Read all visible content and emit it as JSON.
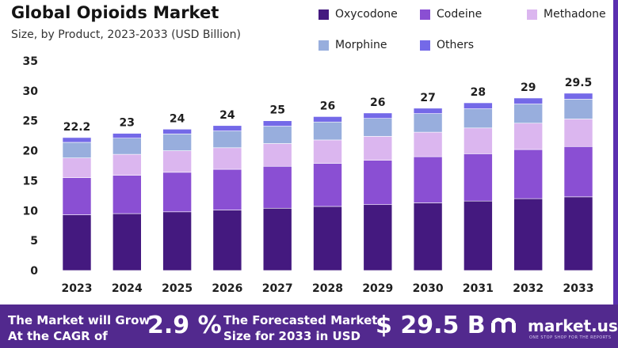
{
  "header": {
    "title": "Global Opioids Market",
    "subtitle": "Size, by Product, 2023-2033 (USD Billion)"
  },
  "colors": {
    "oxycodone": "#44197f",
    "codeine": "#8a4fd3",
    "methadone": "#dbb6ef",
    "morphine": "#98aedd",
    "others": "#7469e8",
    "footer_bg": "#52298e",
    "axis_text": "#1f1f1f"
  },
  "chart_data": {
    "type": "bar",
    "stacked": true,
    "title": "Global Opioids Market",
    "subtitle": "Size, by Product, 2023-2033 (USD Billion)",
    "xlabel": "",
    "ylabel": "",
    "ylim": [
      0,
      35
    ],
    "yticks": [
      0,
      5,
      10,
      15,
      20,
      25,
      30,
      35
    ],
    "grid": false,
    "legend_position": "top-right",
    "categories": [
      "2023",
      "2024",
      "2025",
      "2026",
      "2027",
      "2028",
      "2029",
      "2030",
      "2031",
      "2032",
      "2033"
    ],
    "series": [
      {
        "name": "Oxycodone",
        "values": [
          9.3,
          9.5,
          9.8,
          10.1,
          10.4,
          10.7,
          11.0,
          11.3,
          11.6,
          12.0,
          12.3
        ]
      },
      {
        "name": "Codeine",
        "values": [
          6.2,
          6.4,
          6.6,
          6.8,
          7.0,
          7.2,
          7.4,
          7.7,
          7.9,
          8.2,
          8.4
        ]
      },
      {
        "name": "Methadone",
        "values": [
          3.3,
          3.5,
          3.6,
          3.6,
          3.8,
          3.9,
          4.0,
          4.1,
          4.3,
          4.4,
          4.6
        ]
      },
      {
        "name": "Morphine",
        "values": [
          2.6,
          2.7,
          2.8,
          2.8,
          2.9,
          3.0,
          3.0,
          3.1,
          3.2,
          3.2,
          3.3
        ]
      },
      {
        "name": "Others",
        "values": [
          0.8,
          0.8,
          0.8,
          0.9,
          0.9,
          0.9,
          0.9,
          0.9,
          1.0,
          1.0,
          1.0
        ]
      }
    ],
    "total_labels": [
      "22.2",
      "23",
      "24",
      "24",
      "25",
      "26",
      "26",
      "27",
      "28",
      "29",
      "29.5"
    ]
  },
  "footer": {
    "cagr_text_line1": "The Market will Grow",
    "cagr_text_line2": "At the CAGR of",
    "cagr_value": "2.9 %",
    "forecast_text_line1": "The Forecasted Market",
    "forecast_text_line2": "Size for 2033 in USD",
    "forecast_value": "$ 29.5 B",
    "brand_name": "market.us",
    "brand_tagline": "ONE STOP SHOP FOR THE REPORTS"
  }
}
